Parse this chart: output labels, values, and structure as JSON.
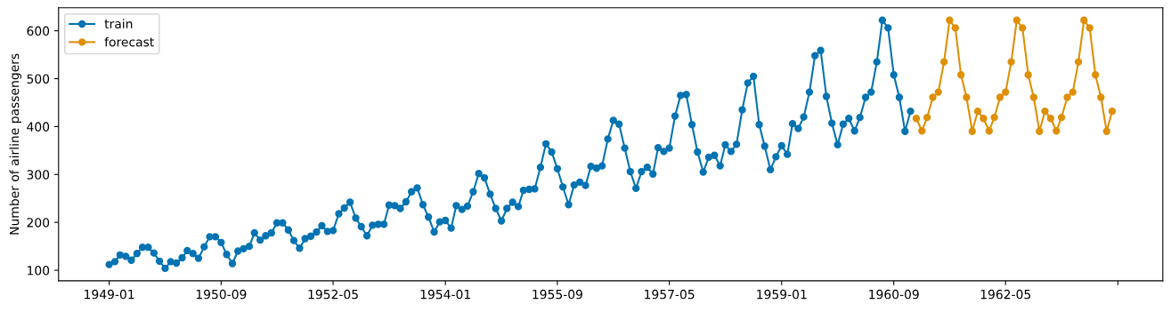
{
  "chart_data": {
    "type": "line",
    "ylabel": "Number of airline passengers",
    "marker": "circle",
    "line_style": "solid",
    "grid": false,
    "legend": "top left",
    "xlim": [
      "1948-04",
      "1964-09"
    ],
    "ylim": [
      78,
      648
    ],
    "yticks": [
      100,
      200,
      300,
      400,
      500,
      600
    ],
    "xticks": [
      {
        "value": "1949-01",
        "label": "1949-01"
      },
      {
        "value": "1950-09",
        "label": "1950-09"
      },
      {
        "value": "1952-05",
        "label": "1952-05"
      },
      {
        "value": "1954-01",
        "label": "1954-01"
      },
      {
        "value": "1955-09",
        "label": "1955-09"
      },
      {
        "value": "1957-05",
        "label": "1957-05"
      },
      {
        "value": "1959-01",
        "label": "1959-01"
      },
      {
        "value": "1960-09",
        "label": "1960-09"
      },
      {
        "value": "1962-05",
        "label": "1962-05"
      },
      {
        "value": "1964-01",
        "label": null
      }
    ],
    "series": [
      {
        "name": "train",
        "color": "#0173b2",
        "x": [
          "1949-01",
          "1949-02",
          "1949-03",
          "1949-04",
          "1949-05",
          "1949-06",
          "1949-07",
          "1949-08",
          "1949-09",
          "1949-10",
          "1949-11",
          "1949-12",
          "1950-01",
          "1950-02",
          "1950-03",
          "1950-04",
          "1950-05",
          "1950-06",
          "1950-07",
          "1950-08",
          "1950-09",
          "1950-10",
          "1950-11",
          "1950-12",
          "1951-01",
          "1951-02",
          "1951-03",
          "1951-04",
          "1951-05",
          "1951-06",
          "1951-07",
          "1951-08",
          "1951-09",
          "1951-10",
          "1951-11",
          "1951-12",
          "1952-01",
          "1952-02",
          "1952-03",
          "1952-04",
          "1952-05",
          "1952-06",
          "1952-07",
          "1952-08",
          "1952-09",
          "1952-10",
          "1952-11",
          "1952-12",
          "1953-01",
          "1953-02",
          "1953-03",
          "1953-04",
          "1953-05",
          "1953-06",
          "1953-07",
          "1953-08",
          "1953-09",
          "1953-10",
          "1953-11",
          "1953-12",
          "1954-01",
          "1954-02",
          "1954-03",
          "1954-04",
          "1954-05",
          "1954-06",
          "1954-07",
          "1954-08",
          "1954-09",
          "1954-10",
          "1954-11",
          "1954-12",
          "1955-01",
          "1955-02",
          "1955-03",
          "1955-04",
          "1955-05",
          "1955-06",
          "1955-07",
          "1955-08",
          "1955-09",
          "1955-10",
          "1955-11",
          "1955-12",
          "1956-01",
          "1956-02",
          "1956-03",
          "1956-04",
          "1956-05",
          "1956-06",
          "1956-07",
          "1956-08",
          "1956-09",
          "1956-10",
          "1956-11",
          "1956-12",
          "1957-01",
          "1957-02",
          "1957-03",
          "1957-04",
          "1957-05",
          "1957-06",
          "1957-07",
          "1957-08",
          "1957-09",
          "1957-10",
          "1957-11",
          "1957-12",
          "1958-01",
          "1958-02",
          "1958-03",
          "1958-04",
          "1958-05",
          "1958-06",
          "1958-07",
          "1958-08",
          "1958-09",
          "1958-10",
          "1958-11",
          "1958-12",
          "1959-01",
          "1959-02",
          "1959-03",
          "1959-04",
          "1959-05",
          "1959-06",
          "1959-07",
          "1959-08",
          "1959-09",
          "1959-10",
          "1959-11",
          "1959-12",
          "1960-01",
          "1960-02",
          "1960-03",
          "1960-04",
          "1960-05",
          "1960-06",
          "1960-07",
          "1960-08",
          "1960-09",
          "1960-10",
          "1960-11",
          "1960-12"
        ],
        "values": [
          112,
          118,
          132,
          129,
          121,
          135,
          148,
          148,
          136,
          119,
          104,
          118,
          115,
          126,
          141,
          135,
          125,
          149,
          170,
          170,
          158,
          133,
          114,
          140,
          145,
          150,
          178,
          163,
          172,
          178,
          199,
          199,
          184,
          162,
          146,
          166,
          171,
          180,
          193,
          181,
          183,
          218,
          230,
          242,
          209,
          191,
          172,
          194,
          196,
          196,
          236,
          235,
          229,
          243,
          264,
          272,
          237,
          211,
          180,
          201,
          204,
          188,
          235,
          227,
          234,
          264,
          302,
          293,
          259,
          229,
          203,
          229,
          242,
          233,
          267,
          269,
          270,
          315,
          364,
          347,
          312,
          274,
          237,
          278,
          284,
          277,
          317,
          313,
          318,
          374,
          413,
          405,
          355,
          306,
          271,
          306,
          315,
          301,
          356,
          348,
          355,
          422,
          465,
          467,
          404,
          347,
          305,
          336,
          340,
          318,
          362,
          348,
          363,
          435,
          491,
          505,
          404,
          359,
          310,
          337,
          360,
          342,
          406,
          396,
          420,
          472,
          548,
          559,
          463,
          407,
          362,
          405,
          417,
          391,
          419,
          461,
          472,
          535,
          622,
          606,
          508,
          461,
          390,
          432
        ]
      },
      {
        "name": "forecast",
        "color": "#de8f05",
        "x": [
          "1961-01",
          "1961-02",
          "1961-03",
          "1961-04",
          "1961-05",
          "1961-06",
          "1961-07",
          "1961-08",
          "1961-09",
          "1961-10",
          "1961-11",
          "1961-12",
          "1962-01",
          "1962-02",
          "1962-03",
          "1962-04",
          "1962-05",
          "1962-06",
          "1962-07",
          "1962-08",
          "1962-09",
          "1962-10",
          "1962-11",
          "1962-12",
          "1963-01",
          "1963-02",
          "1963-03",
          "1963-04",
          "1963-05",
          "1963-06",
          "1963-07",
          "1963-08",
          "1963-09",
          "1963-10",
          "1963-11",
          "1963-12"
        ],
        "values": [
          417,
          391,
          419,
          461,
          472,
          535,
          622,
          606,
          508,
          461,
          390,
          432,
          417,
          391,
          419,
          461,
          472,
          535,
          622,
          606,
          508,
          461,
          390,
          432,
          417,
          391,
          419,
          461,
          472,
          535,
          622,
          606,
          508,
          461,
          390,
          432
        ]
      }
    ]
  }
}
